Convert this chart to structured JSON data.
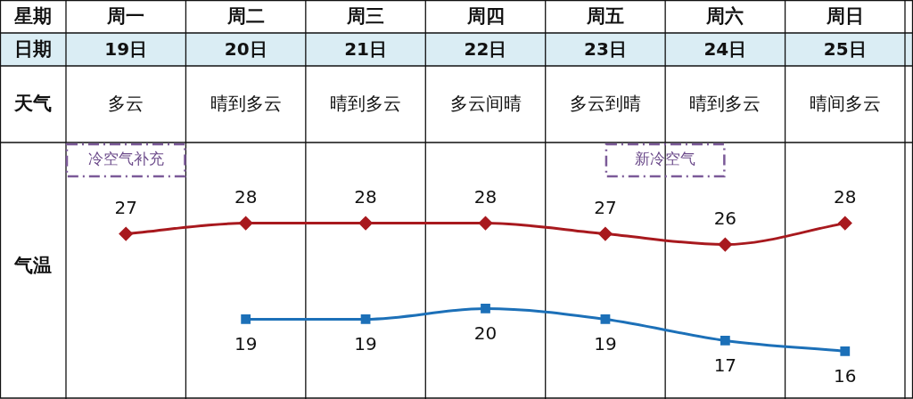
{
  "chart_data": {
    "type": "line",
    "categories": [
      "周一",
      "周二",
      "周三",
      "周四",
      "周五",
      "周六",
      "周日"
    ],
    "ylabel": "气温",
    "series": [
      {
        "color": "#a8191e",
        "marker": "diamond",
        "values": [
          27,
          28,
          28,
          28,
          27,
          26,
          28
        ]
      },
      {
        "color": "#1c70b8",
        "marker": "square",
        "values": [
          null,
          19,
          19,
          20,
          19,
          17,
          16
        ]
      }
    ],
    "tick_labels": "x",
    "grid": "x",
    "data_labels": true,
    "line_style": "solid",
    "annotations": [
      "星期",
      "日期",
      "天气",
      "19日",
      "20日",
      "21日",
      "22日",
      "23日",
      "24日",
      "25日",
      "多云",
      "晴到多云",
      "晴到多云",
      "多云间晴",
      "多云到晴",
      "晴到多云",
      "晴间多云",
      "冷空气补充",
      "新冷空气"
    ]
  }
}
